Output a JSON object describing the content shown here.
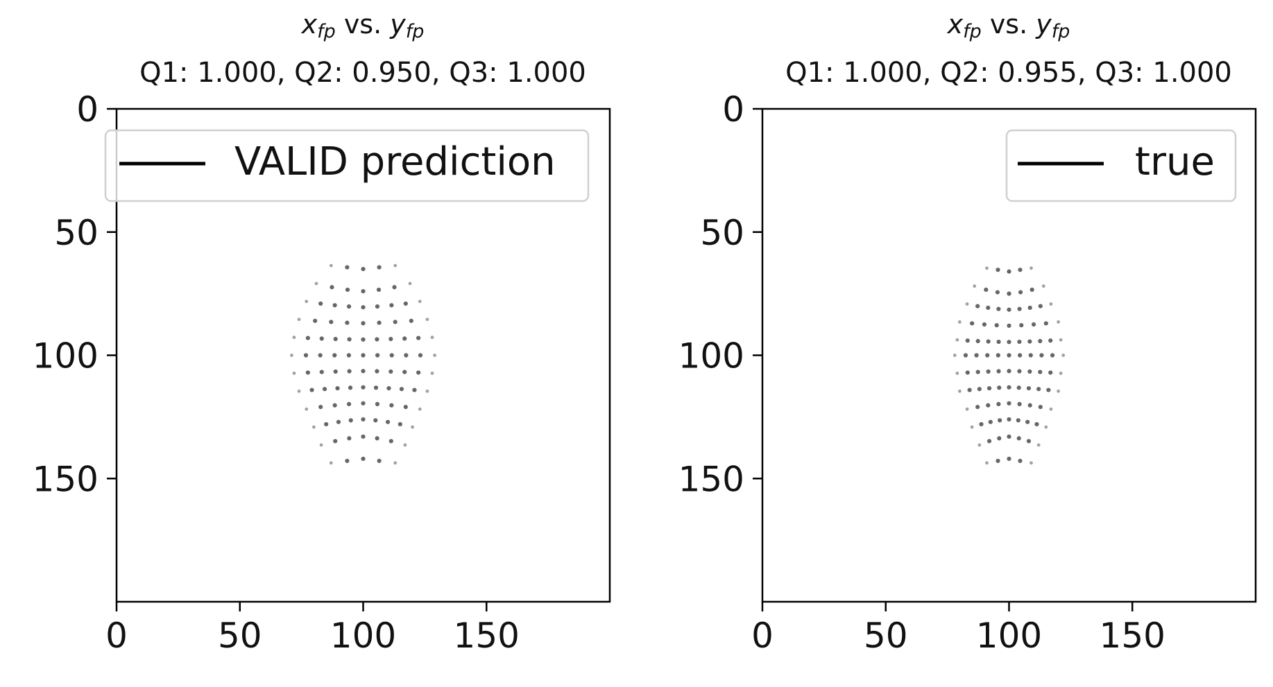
{
  "chart_data": [
    {
      "type": "scatter",
      "title_var_x": "x",
      "title_sub_x": "fp",
      "title_vs": " vs. ",
      "title_var_y": "y",
      "title_sub_y": "fp",
      "subtitle": "Q1: 1.000, Q2: 0.950, Q3: 1.000",
      "legend": "VALID prediction",
      "legend_position": "upper-left",
      "xlim": [
        0,
        200
      ],
      "ylim": [
        200,
        0
      ],
      "x_inverted": false,
      "y_inverted": true,
      "xticks": [
        0,
        50,
        100,
        150
      ],
      "yticks": [
        0,
        50,
        100,
        150
      ],
      "grid": false,
      "point_color": "#555555",
      "center": [
        100,
        100
      ],
      "rows": [
        {
          "y": 65,
          "w": 13,
          "n": 5,
          "bow": 0
        },
        {
          "y": 72,
          "w": 19,
          "n": 7,
          "bow": 2
        },
        {
          "y": 79,
          "w": 23,
          "n": 9,
          "bow": 1.5
        },
        {
          "y": 86,
          "w": 26,
          "n": 9,
          "bow": 1
        },
        {
          "y": 93,
          "w": 28,
          "n": 11,
          "bow": 0.6
        },
        {
          "y": 100,
          "w": 29,
          "n": 11,
          "bow": 0
        },
        {
          "y": 107,
          "w": 28,
          "n": 11,
          "bow": -0.6
        },
        {
          "y": 114,
          "w": 26,
          "n": 11,
          "bow": -1
        },
        {
          "y": 121,
          "w": 23,
          "n": 9,
          "bow": -1.5
        },
        {
          "y": 128,
          "w": 20,
          "n": 9,
          "bow": -2
        },
        {
          "y": 135,
          "w": 17,
          "n": 7,
          "bow": -2
        },
        {
          "y": 142,
          "w": 13,
          "n": 5,
          "bow": 0
        }
      ]
    },
    {
      "type": "scatter",
      "title_var_x": "x",
      "title_sub_x": "fp",
      "title_vs": " vs. ",
      "title_var_y": "y",
      "title_sub_y": "fp",
      "subtitle": "Q1: 1.000, Q2: 0.955, Q3: 1.000",
      "legend": "true",
      "legend_position": "upper-right",
      "xlim": [
        0,
        200
      ],
      "ylim": [
        200,
        0
      ],
      "x_inverted": false,
      "y_inverted": true,
      "xticks": [
        0,
        50,
        100,
        150
      ],
      "yticks": [
        0,
        50,
        100,
        150
      ],
      "grid": false,
      "point_color": "#555555",
      "center": [
        100,
        100
      ],
      "rows": [
        {
          "y": 66,
          "w": 9,
          "n": 5,
          "bow": 0
        },
        {
          "y": 73,
          "w": 14,
          "n": 7,
          "bow": 2
        },
        {
          "y": 80,
          "w": 17,
          "n": 9,
          "bow": 1.5
        },
        {
          "y": 87,
          "w": 20,
          "n": 9,
          "bow": 1
        },
        {
          "y": 94,
          "w": 21,
          "n": 11,
          "bow": 0.6
        },
        {
          "y": 100,
          "w": 22,
          "n": 11,
          "bow": 0
        },
        {
          "y": 107,
          "w": 21,
          "n": 11,
          "bow": -0.6
        },
        {
          "y": 114,
          "w": 20,
          "n": 11,
          "bow": -1
        },
        {
          "y": 121,
          "w": 17,
          "n": 9,
          "bow": -1.5
        },
        {
          "y": 128,
          "w": 15,
          "n": 9,
          "bow": -2
        },
        {
          "y": 135,
          "w": 12,
          "n": 7,
          "bow": -2
        },
        {
          "y": 142,
          "w": 9,
          "n": 5,
          "bow": 0
        }
      ]
    }
  ]
}
